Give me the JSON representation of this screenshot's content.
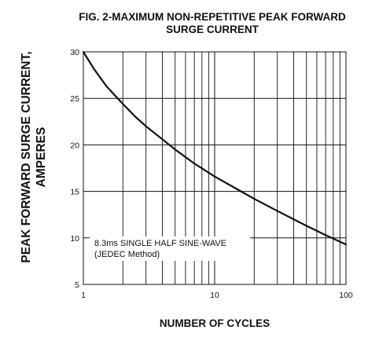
{
  "chart_data": {
    "type": "line",
    "title": [
      "FIG. 2-MAXIMUM NON-REPETITIVE PEAK FORWARD",
      "SURGE CURRENT"
    ],
    "ylabel": [
      "PEAK  FORWARD SURGE CURRENT,",
      "AMPERES"
    ],
    "xlabel": "NUMBER OF CYCLES",
    "xscale": "log",
    "xlim": [
      1,
      100
    ],
    "ylim": [
      5,
      30
    ],
    "xticks": [
      1,
      10,
      100
    ],
    "xtick_labels": [
      "1",
      "10",
      "100"
    ],
    "yticks": [
      5,
      10,
      15,
      20,
      25,
      30
    ],
    "ytick_labels": [
      "5",
      "10",
      "15",
      "20",
      "25",
      "30"
    ],
    "grid": true,
    "annotation": [
      "8.3ms SINGLE HALF SINE-WAVE",
      "(JEDEC Method)"
    ],
    "series": [
      {
        "values": [
          {
            "x": 1,
            "y": 30
          },
          {
            "x": 1.2,
            "y": 28.2
          },
          {
            "x": 1.5,
            "y": 26.3
          },
          {
            "x": 2,
            "y": 24.4
          },
          {
            "x": 2.5,
            "y": 23.0
          },
          {
            "x": 3,
            "y": 22.0
          },
          {
            "x": 4,
            "y": 20.6
          },
          {
            "x": 5,
            "y": 19.5
          },
          {
            "x": 7,
            "y": 18.0
          },
          {
            "x": 10,
            "y": 16.6
          },
          {
            "x": 15,
            "y": 15.2
          },
          {
            "x": 20,
            "y": 14.2
          },
          {
            "x": 30,
            "y": 12.9
          },
          {
            "x": 40,
            "y": 12.0
          },
          {
            "x": 50,
            "y": 11.3
          },
          {
            "x": 70,
            "y": 10.3
          },
          {
            "x": 100,
            "y": 9.3
          }
        ]
      }
    ]
  }
}
